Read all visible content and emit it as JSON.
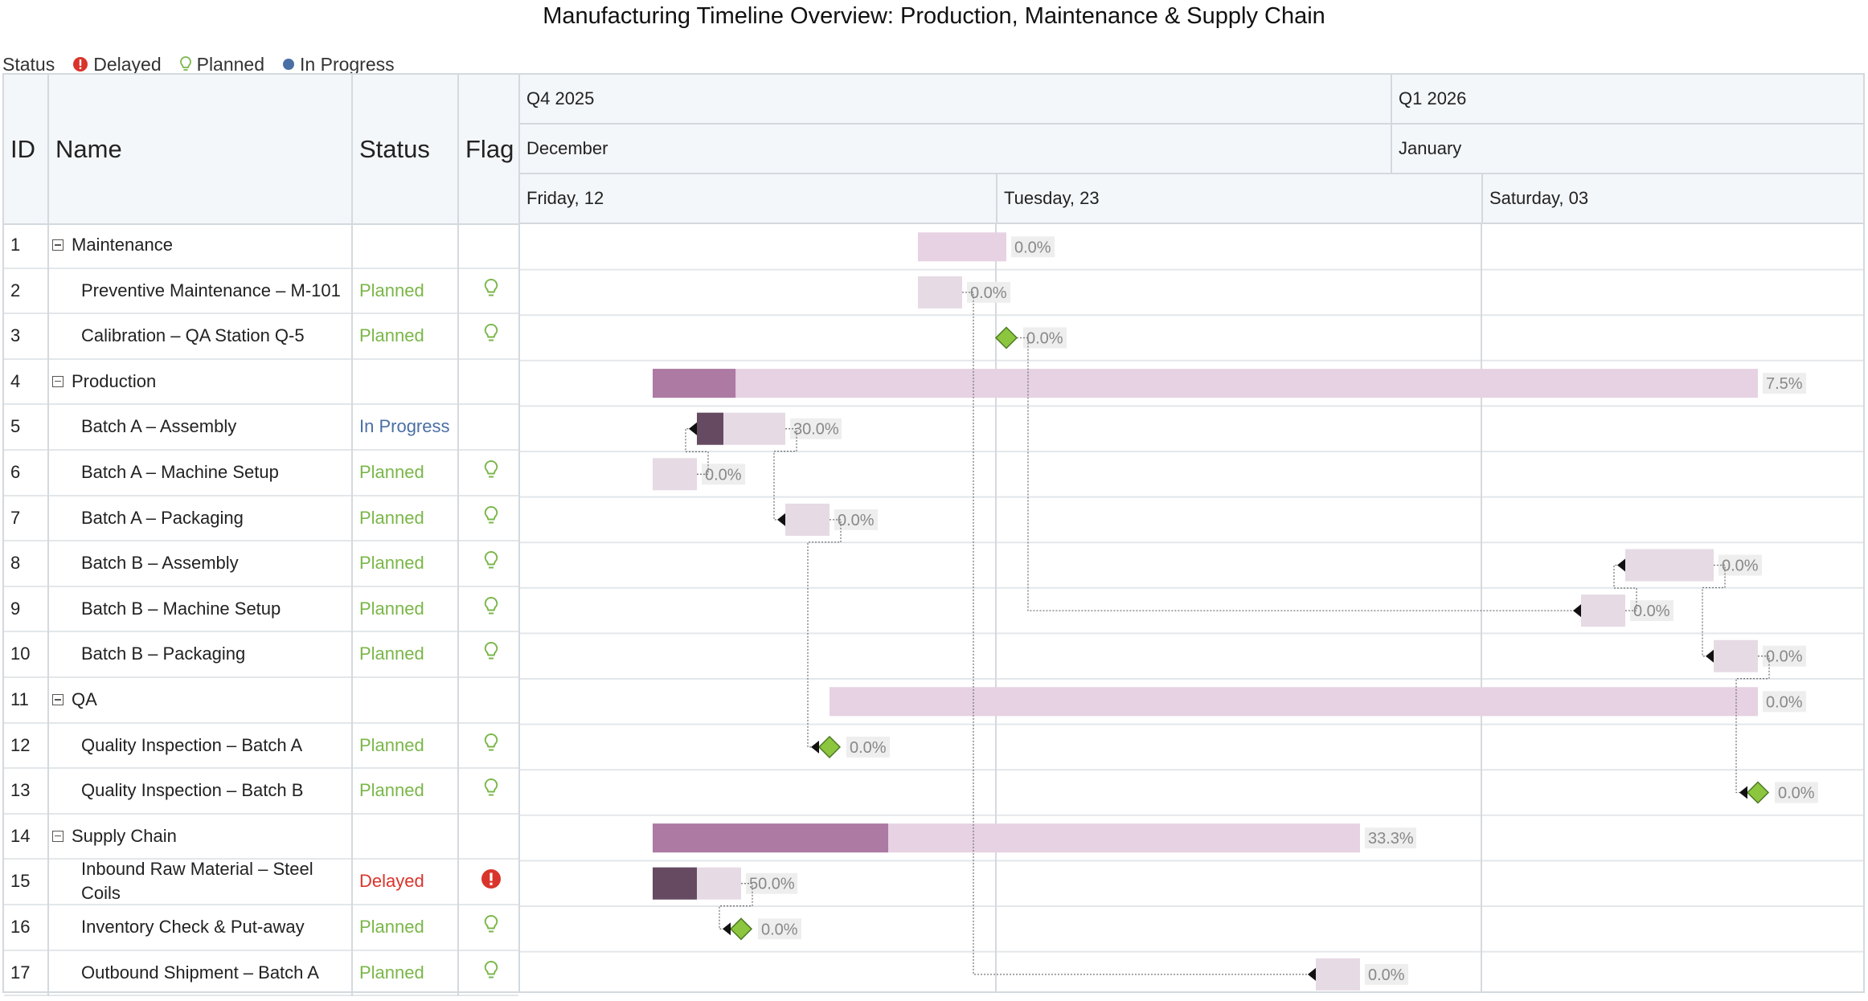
{
  "title": "Manufacturing Timeline Overview: Production, Maintenance & Supply Chain",
  "legend": {
    "label": "Status",
    "items": [
      {
        "label": "Delayed",
        "icon": "alert-icon",
        "color": "#d9342b"
      },
      {
        "label": "Planned",
        "icon": "lightbulb-icon",
        "color": "#7ab648"
      },
      {
        "label": "In Progress",
        "icon": "circle-icon",
        "color": "#4a6fa5"
      }
    ]
  },
  "columns": {
    "id": "ID",
    "name": "Name",
    "status": "Status",
    "flag": "Flag"
  },
  "timescale": {
    "quarters": [
      "Q4 2025",
      "Q1 2026"
    ],
    "months": [
      "December",
      "January"
    ],
    "days": [
      "Friday, 12",
      "Tuesday, 23",
      "Saturday, 03"
    ]
  },
  "colors": {
    "group_bar": "#e6d2e3",
    "group_progress": "#ad7aa3",
    "task_bar": "#e6dae4",
    "task_progress": "#654a61",
    "milestone": "#8cc63f",
    "planned": "#7ab648",
    "in_progress": "#4a6fa5",
    "delayed": "#d9342b"
  },
  "rows": [
    {
      "id": "1",
      "name": "Maintenance",
      "group": true,
      "status": "",
      "flag": "",
      "start": "2025-12-21",
      "end": "2025-12-23",
      "progress": "0.0%"
    },
    {
      "id": "2",
      "name": "Preventive Maintenance – M-101",
      "group": false,
      "status": "Planned",
      "flag": "planned",
      "start": "2025-12-21",
      "end": "2025-12-22",
      "progress": "0.0%"
    },
    {
      "id": "3",
      "name": "Calibration – QA Station Q-5",
      "group": false,
      "status": "Planned",
      "flag": "planned",
      "milestone": true,
      "start": "2025-12-23",
      "end": "2025-12-23",
      "progress": "0.0%"
    },
    {
      "id": "4",
      "name": "Production",
      "group": true,
      "status": "",
      "flag": "",
      "start": "2025-12-15",
      "end": "2026-01-09",
      "progress": "7.5%"
    },
    {
      "id": "5",
      "name": "Batch A – Assembly",
      "group": false,
      "status": "In Progress",
      "flag": "",
      "start": "2025-12-16",
      "end": "2025-12-18",
      "progress": "30.0%"
    },
    {
      "id": "6",
      "name": "Batch A – Machine Setup",
      "group": false,
      "status": "Planned",
      "flag": "planned",
      "start": "2025-12-15",
      "end": "2025-12-16",
      "progress": "0.0%"
    },
    {
      "id": "7",
      "name": "Batch A – Packaging",
      "group": false,
      "status": "Planned",
      "flag": "planned",
      "start": "2025-12-18",
      "end": "2025-12-19",
      "progress": "0.0%"
    },
    {
      "id": "8",
      "name": "Batch B – Assembly",
      "group": false,
      "status": "Planned",
      "flag": "planned",
      "start": "2026-01-06",
      "end": "2026-01-08",
      "progress": "0.0%"
    },
    {
      "id": "9",
      "name": "Batch B – Machine Setup",
      "group": false,
      "status": "Planned",
      "flag": "planned",
      "start": "2026-01-05",
      "end": "2026-01-06",
      "progress": "0.0%"
    },
    {
      "id": "10",
      "name": "Batch B – Packaging",
      "group": false,
      "status": "Planned",
      "flag": "planned",
      "start": "2026-01-08",
      "end": "2026-01-09",
      "progress": "0.0%"
    },
    {
      "id": "11",
      "name": "QA",
      "group": true,
      "status": "",
      "flag": "",
      "start": "2025-12-19",
      "end": "2026-01-09",
      "progress": "0.0%"
    },
    {
      "id": "12",
      "name": "Quality Inspection – Batch A",
      "group": false,
      "status": "Planned",
      "flag": "planned",
      "milestone": true,
      "start": "2025-12-19",
      "end": "2025-12-19",
      "progress": "0.0%"
    },
    {
      "id": "13",
      "name": "Quality Inspection – Batch B",
      "group": false,
      "status": "Planned",
      "flag": "planned",
      "milestone": true,
      "start": "2026-01-09",
      "end": "2026-01-09",
      "progress": "0.0%"
    },
    {
      "id": "14",
      "name": "Supply Chain",
      "group": true,
      "status": "",
      "flag": "",
      "start": "2025-12-15",
      "end": "2025-12-31",
      "progress": "33.3%"
    },
    {
      "id": "15",
      "name": "Inbound Raw Material – Steel Coils",
      "group": false,
      "status": "Delayed",
      "flag": "delayed",
      "start": "2025-12-15",
      "end": "2025-12-17",
      "progress": "50.0%"
    },
    {
      "id": "16",
      "name": "Inventory Check & Put-away",
      "group": false,
      "status": "Planned",
      "flag": "planned",
      "milestone": true,
      "start": "2025-12-17",
      "end": "2025-12-17",
      "progress": "0.0%"
    },
    {
      "id": "17",
      "name": "Outbound Shipment – Batch A",
      "group": false,
      "status": "Planned",
      "flag": "planned",
      "start": "2025-12-30",
      "end": "2025-12-31",
      "progress": "0.0%"
    }
  ],
  "dependencies": [
    [
      "6",
      "5"
    ],
    [
      "5",
      "7"
    ],
    [
      "15",
      "16"
    ],
    [
      "7",
      "12"
    ],
    [
      "2",
      "17"
    ],
    [
      "3",
      "9"
    ],
    [
      "9",
      "8"
    ],
    [
      "8",
      "10"
    ],
    [
      "10",
      "13"
    ]
  ]
}
